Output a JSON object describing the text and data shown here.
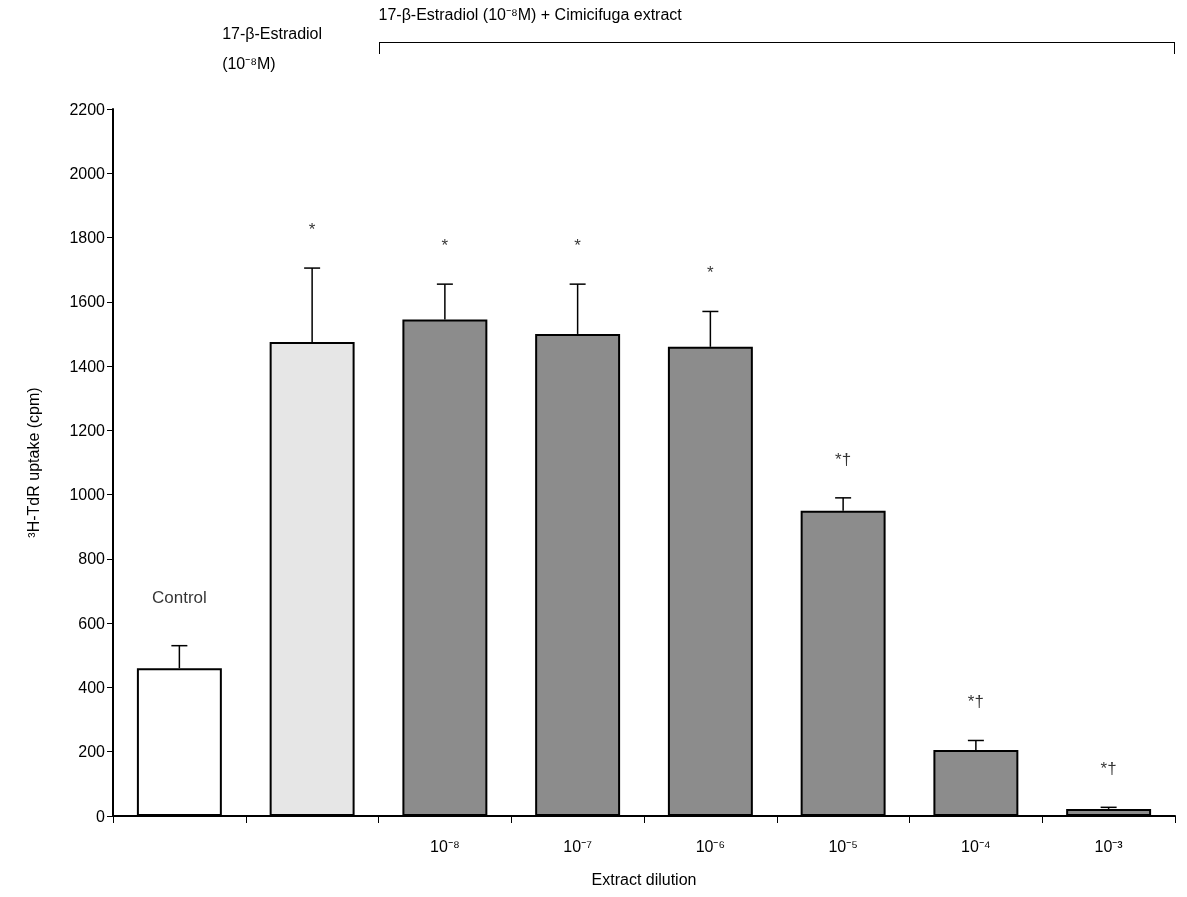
{
  "chart_data": {
    "type": "bar",
    "categories": [
      null,
      null,
      "10⁻⁸",
      "10⁻⁷",
      "10⁻⁶",
      "10⁻⁵",
      "10⁻⁴",
      "10⁻³"
    ],
    "values": [
      460,
      1475,
      1545,
      1500,
      1460,
      950,
      205,
      22
    ],
    "errors": [
      70,
      230,
      110,
      155,
      110,
      40,
      30,
      5
    ],
    "colors": [
      "#ffffff",
      "#e6e6e6",
      "#8c8c8c",
      "#8c8c8c",
      "#8c8c8c",
      "#8c8c8c",
      "#8c8c8c",
      "#8c8c8c"
    ],
    "xlabel": "Extract dilution",
    "ylabel": "³H-TdR uptake (cpm)",
    "ylim": [
      0,
      2200
    ],
    "yticks": [
      0,
      200,
      400,
      600,
      800,
      1000,
      1200,
      1400,
      1600,
      1800,
      2000,
      2200
    ],
    "grid": false,
    "annotations": [
      "17-β-Estradiol\n(10⁻⁸M)",
      "17-β-Estradiol (10⁻⁸M) + Cimicifuga extract",
      "Control",
      "*",
      "*",
      "*",
      "*",
      "*†",
      "*†",
      "*†"
    ]
  }
}
